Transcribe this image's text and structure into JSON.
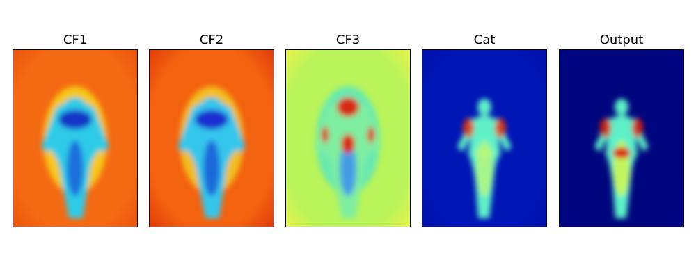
{
  "panels": [
    {
      "id": "cf1",
      "title": "CF1",
      "colormap": "jet",
      "bg": "#f46a12",
      "edge": "#e8500d",
      "halo": "#f7d21a",
      "body_outer": "#2ecbe8",
      "body_inner": "#1b5fd9",
      "core": "#1536c8"
    },
    {
      "id": "cf2",
      "title": "CF2",
      "colormap": "jet",
      "bg": "#f3620f",
      "edge": "#dc330a",
      "halo": "#f2c81c",
      "body_outer": "#34c6ec",
      "body_inner": "#1c58d6",
      "core": "#1a2fcf"
    },
    {
      "id": "cf3",
      "title": "CF3",
      "colormap": "jet",
      "bg": "#b8f45a",
      "edge": "#f2f24a",
      "halo": "#60e8b8",
      "body_outer": "#7feea0",
      "body_inner": "#3a8cf0",
      "core": "#d72a12"
    },
    {
      "id": "cat",
      "title": "Cat",
      "colormap": "jet",
      "bg": "#0016b4",
      "edge": "#0010a8",
      "halo": "#1f79ff",
      "body_outer": "#5ef0c8",
      "body_inner": "#b4f77e",
      "core": "#e0340f"
    },
    {
      "id": "output",
      "title": "Output",
      "colormap": "jet",
      "bg": "#00067e",
      "edge": "#000484",
      "halo": "#1f6ff2",
      "body_outer": "#5cf0c8",
      "body_inner": "#d4f64c",
      "core": "#d71c0a"
    }
  ]
}
